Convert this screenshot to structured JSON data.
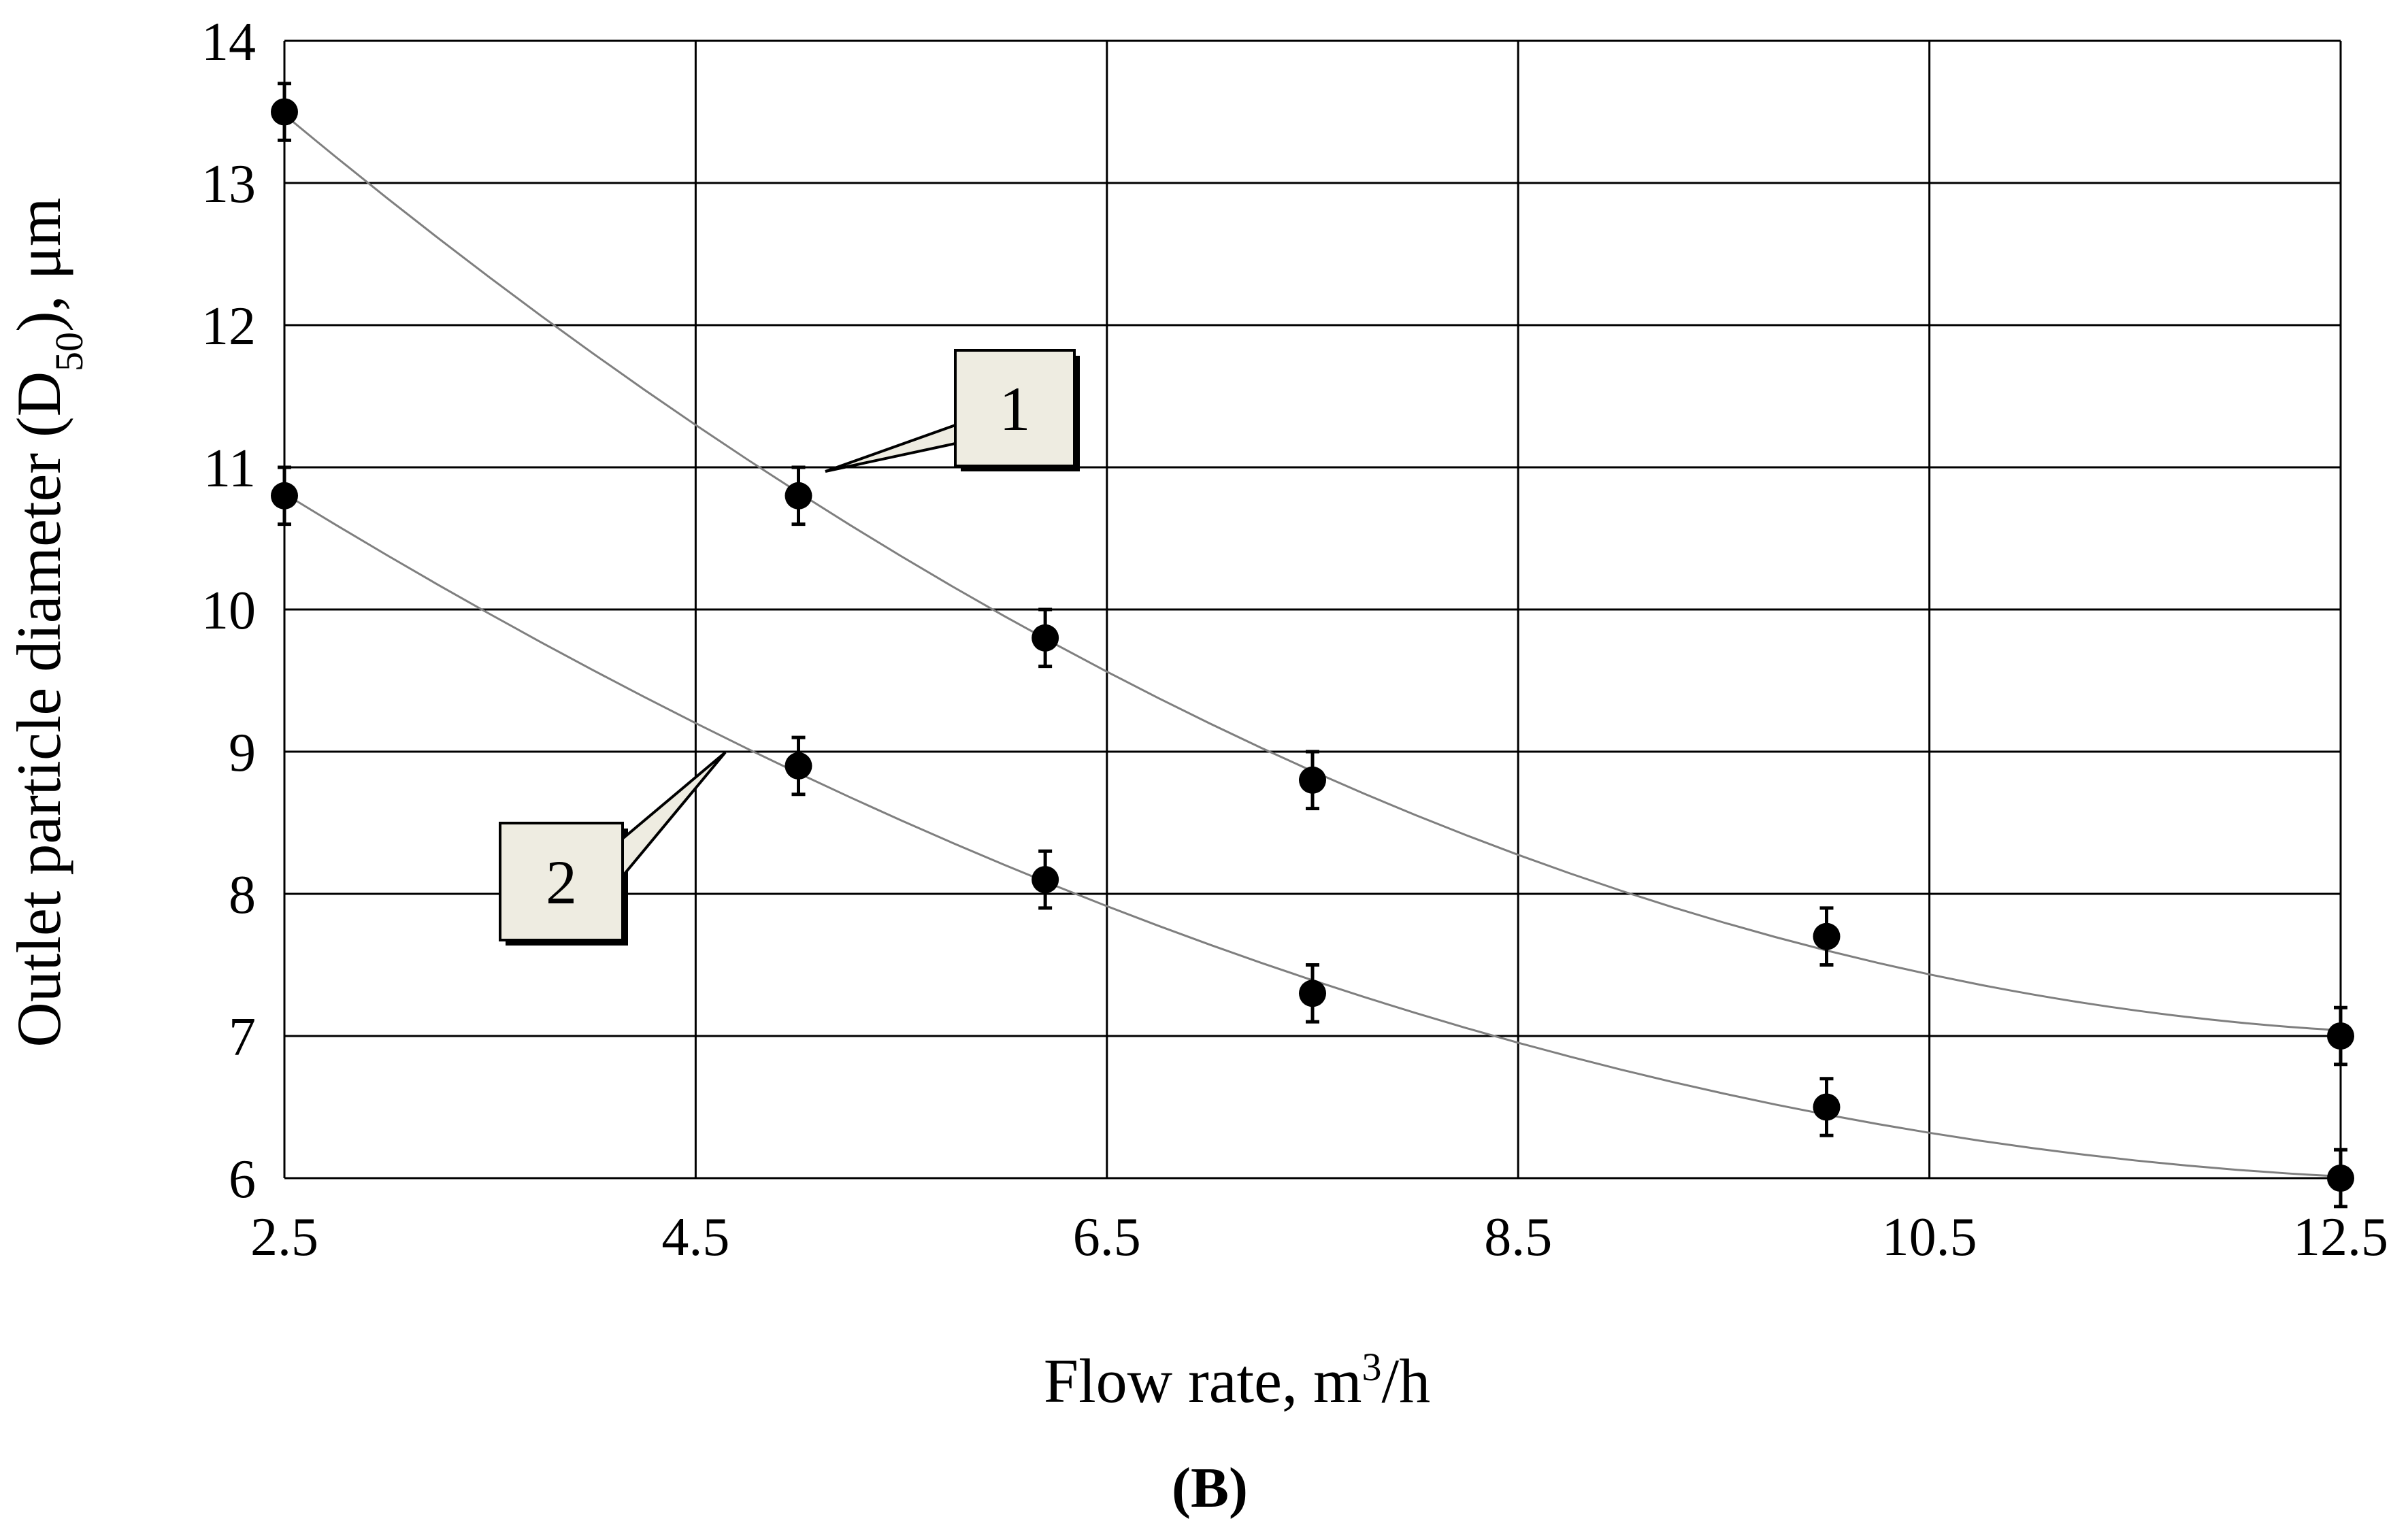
{
  "chart_data": {
    "type": "scatter",
    "title": "",
    "xlabel": "Flow rate, m",
    "xlabel_sup": "3",
    "xlabel_suffix": "/h",
    "ylabel": "Outlet particle diameter (D",
    "ylabel_sub": "50",
    "ylabel_suffix": "), μm",
    "xlim": [
      2.5,
      12.5
    ],
    "ylim": [
      6,
      14
    ],
    "x_ticks": [
      "2.5",
      "4.5",
      "6.5",
      "8.5",
      "10.5",
      "12.5"
    ],
    "y_ticks": [
      "6",
      "7",
      "8",
      "9",
      "10",
      "11",
      "12",
      "13",
      "14"
    ],
    "grid": true,
    "panel_label": "(B)",
    "series": [
      {
        "name": "1",
        "x": [
          2.5,
          5.0,
          6.2,
          7.5,
          10.0,
          12.5
        ],
        "y": [
          13.5,
          10.8,
          9.8,
          8.8,
          7.7,
          7.0
        ],
        "error": 0.2,
        "fit_curve": true
      },
      {
        "name": "2",
        "x": [
          2.5,
          5.0,
          6.2,
          7.5,
          10.0,
          12.5
        ],
        "y": [
          10.8,
          8.9,
          8.1,
          7.3,
          6.5,
          6.0
        ],
        "error": 0.2,
        "fit_curve": true
      }
    ],
    "annotations": [
      {
        "label": "1",
        "target_series": 0
      },
      {
        "label": "2",
        "target_series": 1
      }
    ],
    "colors": {
      "marker": "#000000",
      "curve": "#7f7f7f",
      "grid": "#000000",
      "callout_fill": "#eeece1"
    }
  }
}
